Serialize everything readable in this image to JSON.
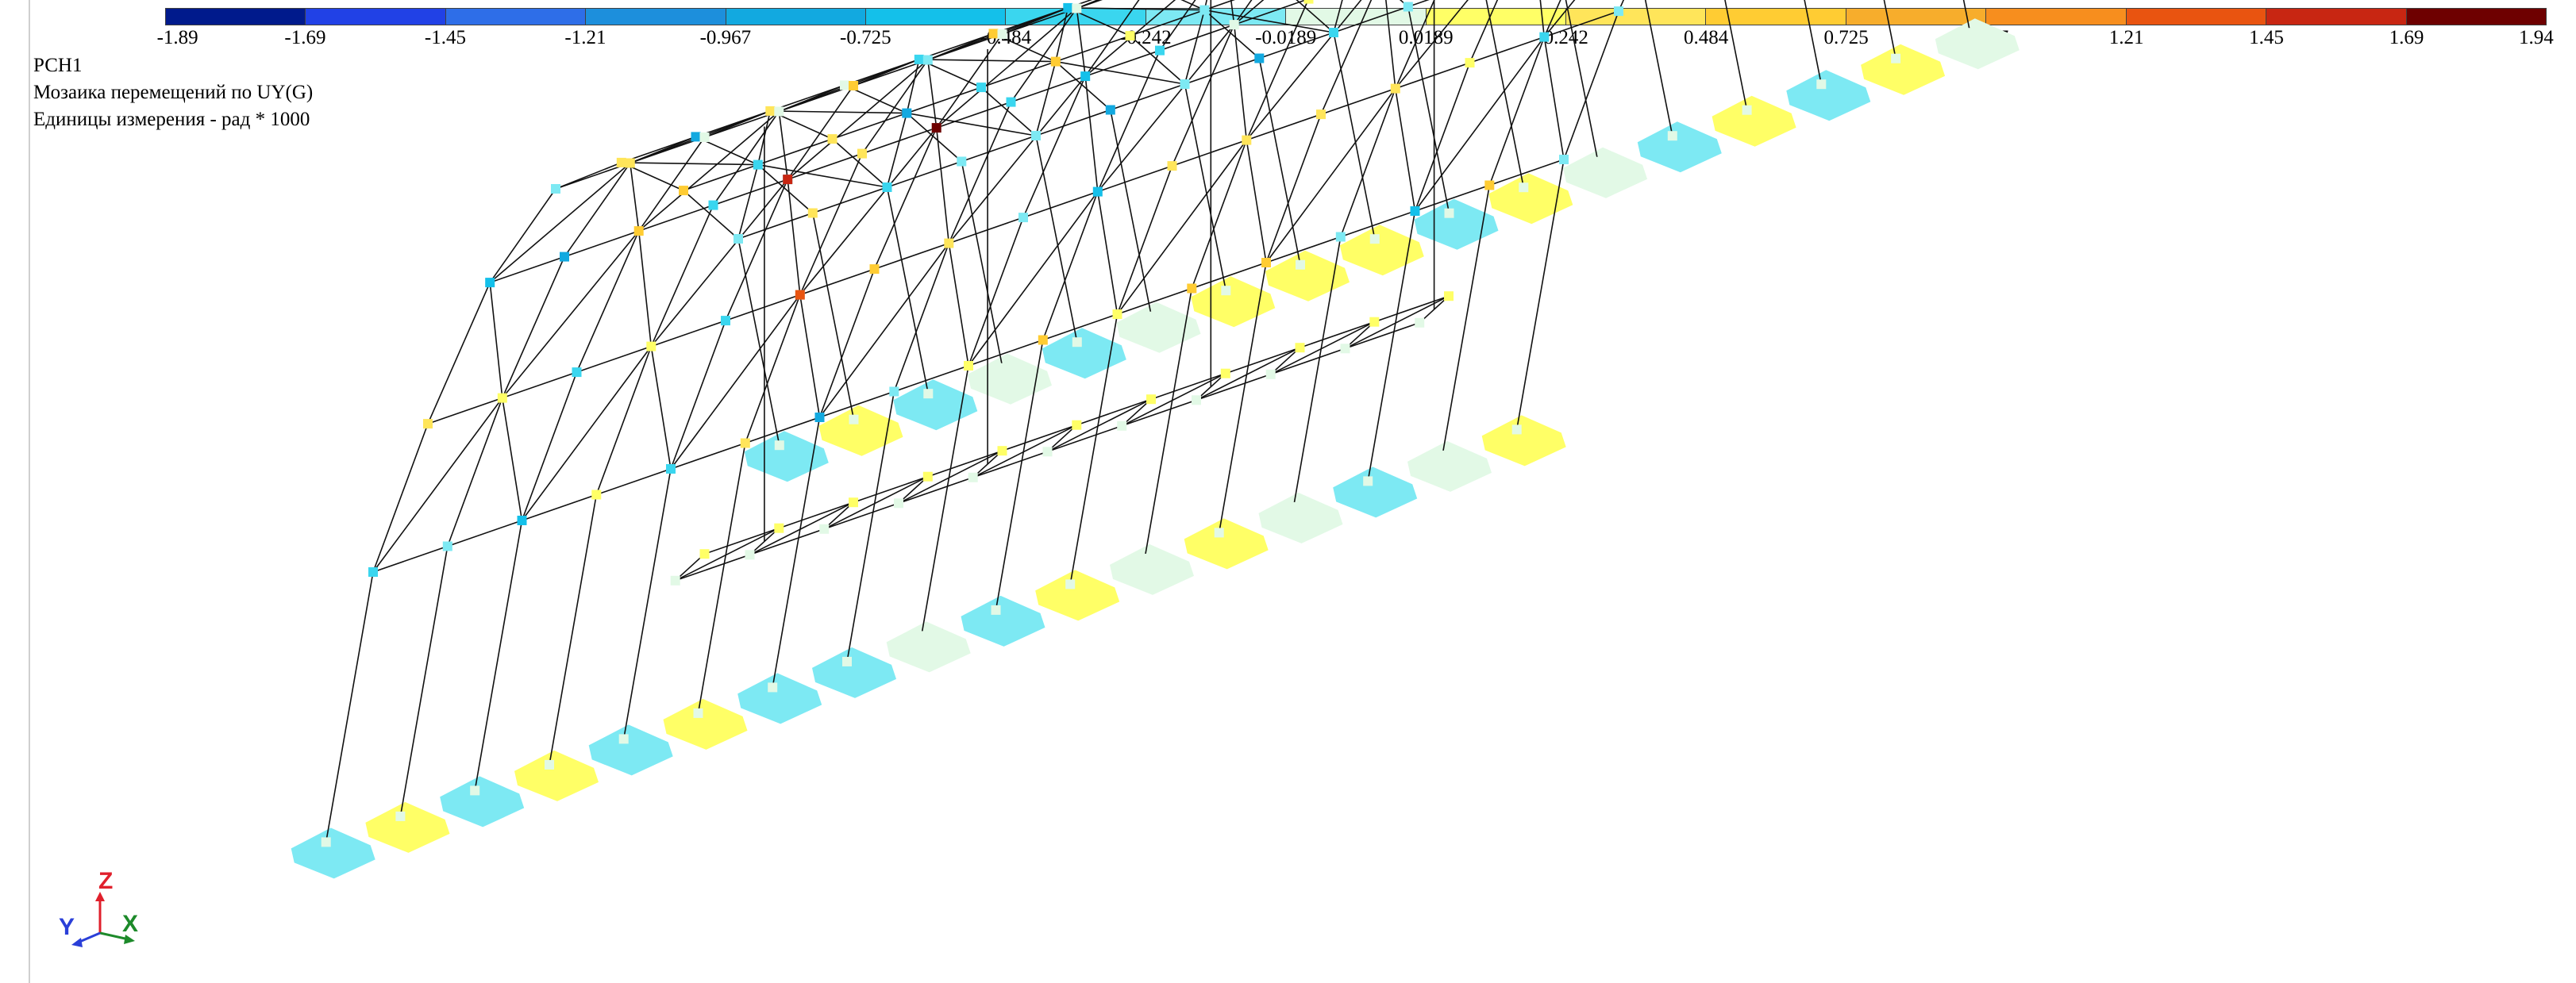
{
  "legend": {
    "labels": [
      "-1.89",
      "-1.69",
      "-1.45",
      "-1.21",
      "-0.967",
      "-0.725",
      "-0.484",
      "-0.242",
      "-0.0189",
      "0.0189",
      "0.242",
      "0.484",
      "0.725",
      "0.967",
      "1.21",
      "1.45",
      "1.69",
      "1.94"
    ],
    "colors": [
      "#001a8c",
      "#2141e6",
      "#2e6ee8",
      "#1d8fdc",
      "#12a9e0",
      "#14c0ea",
      "#3ad6ef",
      "#7de9f3",
      "#e2f9e6",
      "#ffff66",
      "#ffe55a",
      "#ffcc33",
      "#f7ad2c",
      "#f78e1e",
      "#e95410",
      "#c82612",
      "#6e0000"
    ]
  },
  "info": {
    "load_case": "РСН1",
    "result_title": "Мозаика перемещений по UY(G)",
    "units": "Единицы измерения - рад * 1000"
  },
  "axes": {
    "y_label": "Y",
    "z_label": "Z",
    "x_label": "X"
  }
}
